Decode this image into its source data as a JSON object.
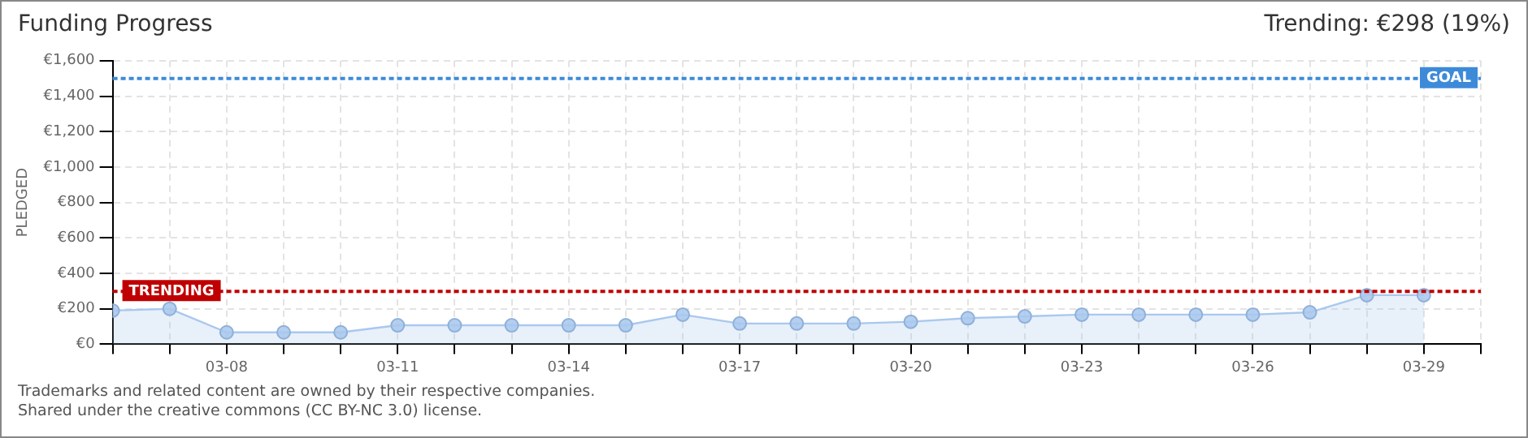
{
  "chart_data": {
    "type": "area",
    "title": "Funding Progress",
    "subtitle": "Trending: €298 (19%)",
    "ylabel": "PLEDGED",
    "x": [
      "--03-06",
      "--03-07",
      "--03-08",
      "--03-09",
      "--03-10",
      "--03-11",
      "--03-12",
      "--03-13",
      "--03-14",
      "--03-15",
      "--03-16",
      "--03-17",
      "--03-18",
      "--03-19",
      "--03-20",
      "--03-21",
      "--03-22",
      "--03-23",
      "--03-24",
      "--03-25",
      "--03-26",
      "--03-27",
      "--03-28",
      "--03-29"
    ],
    "series": [
      {
        "color": "#a9c8ee",
        "values": [
          190,
          200,
          67,
          67,
          67,
          107,
          107,
          107,
          107,
          107,
          167,
          117,
          117,
          117,
          127,
          147,
          157,
          167,
          167,
          167,
          167,
          180,
          277,
          277
        ]
      }
    ],
    "xlim": [
      "--03-06",
      "--03-30"
    ],
    "xticks": [
      {
        "value": "--03-06",
        "label": null
      },
      {
        "value": "--03-07",
        "label": null
      },
      {
        "value": "--03-08",
        "label": "03-08"
      },
      {
        "value": "--03-09",
        "label": null
      },
      {
        "value": "--03-10",
        "label": null
      },
      {
        "value": "--03-11",
        "label": "03-11"
      },
      {
        "value": "--03-12",
        "label": null
      },
      {
        "value": "--03-13",
        "label": null
      },
      {
        "value": "--03-14",
        "label": "03-14"
      },
      {
        "value": "--03-15",
        "label": null
      },
      {
        "value": "--03-16",
        "label": null
      },
      {
        "value": "--03-17",
        "label": "03-17"
      },
      {
        "value": "--03-18",
        "label": null
      },
      {
        "value": "--03-19",
        "label": null
      },
      {
        "value": "--03-20",
        "label": "03-20"
      },
      {
        "value": "--03-21",
        "label": null
      },
      {
        "value": "--03-22",
        "label": null
      },
      {
        "value": "--03-23",
        "label": "03-23"
      },
      {
        "value": "--03-24",
        "label": null
      },
      {
        "value": "--03-25",
        "label": null
      },
      {
        "value": "--03-26",
        "label": "03-26"
      },
      {
        "value": "--03-27",
        "label": null
      },
      {
        "value": "--03-28",
        "label": null
      },
      {
        "value": "--03-29",
        "label": "03-29"
      },
      {
        "value": "--03-30",
        "label": null
      }
    ],
    "ylim": [
      0,
      1600
    ],
    "yticks": [
      {
        "value": 0,
        "label": "€0"
      },
      {
        "value": 200,
        "label": "€200"
      },
      {
        "value": 400,
        "label": "€400"
      },
      {
        "value": 600,
        "label": "€600"
      },
      {
        "value": 800,
        "label": "€800"
      },
      {
        "value": 1000,
        "label": "€1,000"
      },
      {
        "value": 1200,
        "label": "€1,200"
      },
      {
        "value": 1400,
        "label": "€1,400"
      },
      {
        "value": 1600,
        "label": "€1,600"
      }
    ],
    "ref_lines": [
      {
        "axis": "y",
        "value": 1500,
        "label": "GOAL",
        "color": "#3d8ad9",
        "line_style": "dotted"
      },
      {
        "axis": "y",
        "value": 298,
        "label": "TRENDING",
        "color": "#c00000",
        "line_style": "dotted"
      }
    ],
    "grid": true,
    "legend": false,
    "marker": "circle",
    "annotations": [
      "Trademarks and related content are owned by their respective companies.",
      "Shared under the creative commons (CC BY-NC 3.0) license."
    ]
  }
}
